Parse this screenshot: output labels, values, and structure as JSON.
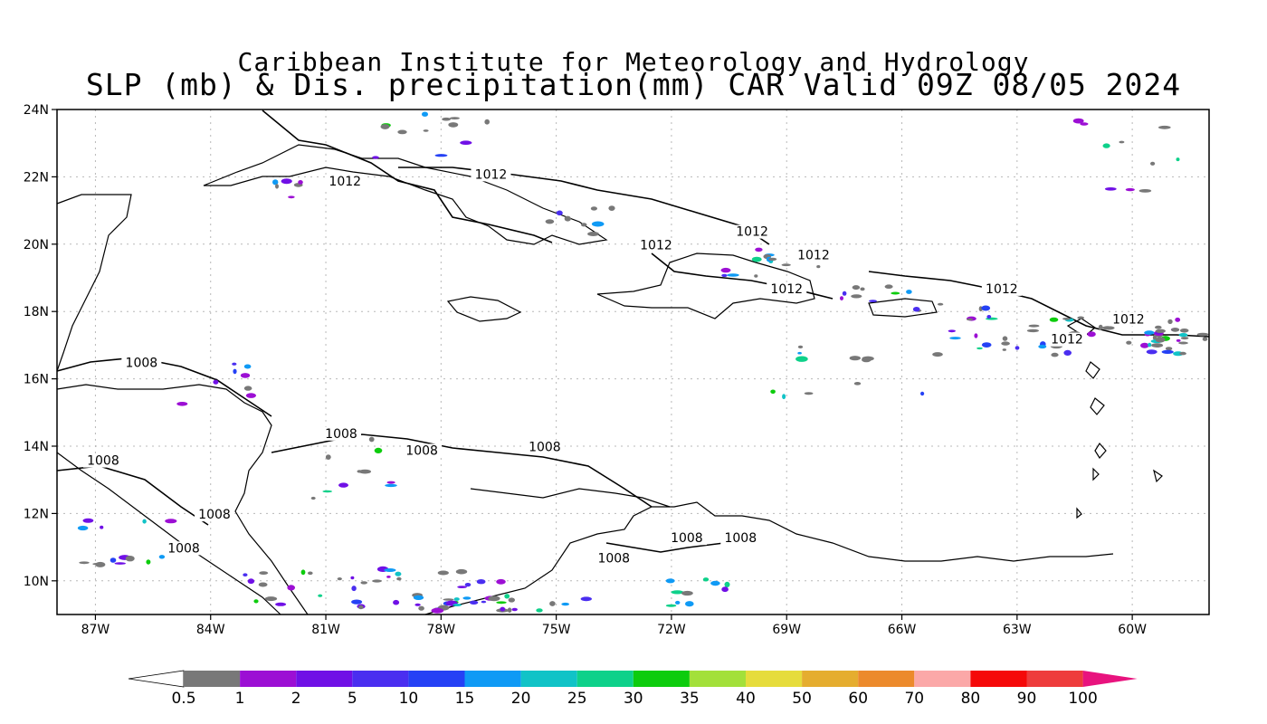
{
  "header": {
    "institute": "Caribbean Institute for Meteorology and Hydrology",
    "product": "SLP (mb) & Dis. precipitation(mm) CAR Valid 09Z 08/05 2024"
  },
  "map": {
    "lon_range": [
      -88,
      -58
    ],
    "lat_range": [
      9,
      24
    ],
    "lon_ticks": [
      "87W",
      "84W",
      "81W",
      "78W",
      "75W",
      "72W",
      "69W",
      "66W",
      "63W",
      "60W"
    ],
    "lat_ticks": [
      "10N",
      "12N",
      "14N",
      "16N",
      "18N",
      "20N",
      "22N",
      "24N"
    ],
    "grid": true,
    "isobars": [
      {
        "label": "1012",
        "lon": -80.5,
        "lat": 21.8
      },
      {
        "label": "1012",
        "lon": -76.7,
        "lat": 22.0
      },
      {
        "label": "1012",
        "lon": -72.4,
        "lat": 19.9
      },
      {
        "label": "1012",
        "lon": -69.9,
        "lat": 20.3
      },
      {
        "label": "1012",
        "lon": -68.3,
        "lat": 19.6
      },
      {
        "label": "1012",
        "lon": -69.0,
        "lat": 18.6
      },
      {
        "label": "1012",
        "lon": -63.4,
        "lat": 18.6
      },
      {
        "label": "1012",
        "lon": -60.1,
        "lat": 17.7
      },
      {
        "label": "1012",
        "lon": -61.7,
        "lat": 17.1
      },
      {
        "label": "1008",
        "lon": -85.8,
        "lat": 16.4
      },
      {
        "label": "1008",
        "lon": -80.6,
        "lat": 14.3
      },
      {
        "label": "1008",
        "lon": -78.5,
        "lat": 13.8
      },
      {
        "label": "1008",
        "lon": -75.3,
        "lat": 13.9
      },
      {
        "label": "1008",
        "lon": -86.8,
        "lat": 13.5
      },
      {
        "label": "1008",
        "lon": -83.9,
        "lat": 11.9
      },
      {
        "label": "1008",
        "lon": -84.7,
        "lat": 10.9
      },
      {
        "label": "1008",
        "lon": -73.5,
        "lat": 10.6
      },
      {
        "label": "1008",
        "lon": -71.6,
        "lat": 11.2
      },
      {
        "label": "1008",
        "lon": -70.2,
        "lat": 11.2
      }
    ]
  },
  "colorbar": {
    "labels": [
      "0.5",
      "1",
      "2",
      "5",
      "10",
      "15",
      "20",
      "25",
      "30",
      "35",
      "40",
      "50",
      "60",
      "70",
      "80",
      "90",
      "100"
    ],
    "colors": [
      "#787878",
      "#9c0fd4",
      "#7010e6",
      "#4a2ef0",
      "#2541f5",
      "#0f9af5",
      "#11c3c7",
      "#0ed18a",
      "#0dcc0d",
      "#a3e03a",
      "#e6dc3c",
      "#e5ad2f",
      "#ec8a2c",
      "#fba8a8",
      "#f50909",
      "#ee3c3c"
    ],
    "arrow_left_color": "#ffffff",
    "arrow_right_color": "#e8137e"
  }
}
